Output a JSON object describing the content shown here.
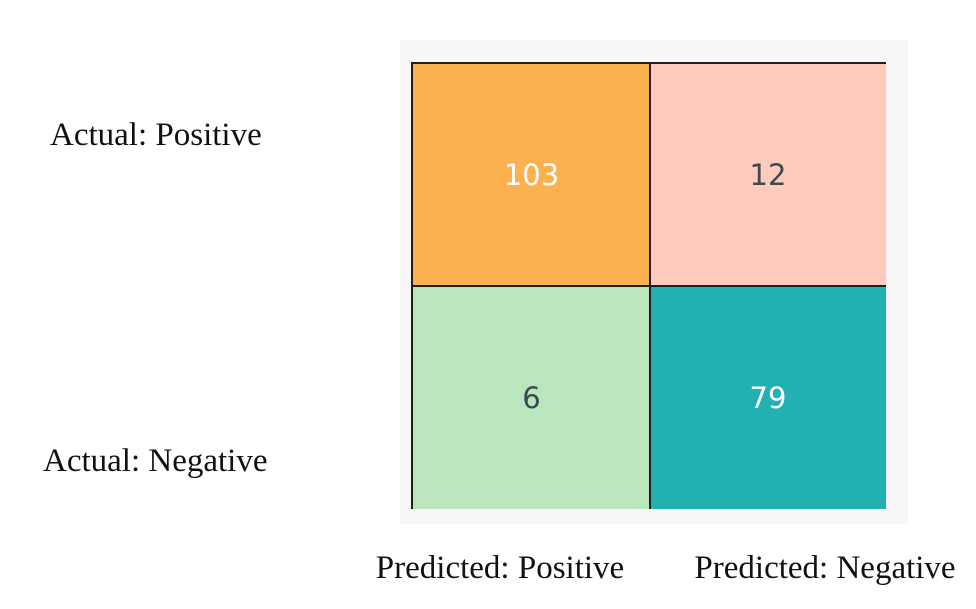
{
  "chart_data": {
    "type": "heatmap",
    "row_labels": [
      "Actual: Positive",
      "Actual: Negative"
    ],
    "column_labels": [
      "Predicted: Positive",
      "Predicted: Negative"
    ],
    "values": [
      [
        103,
        12
      ],
      [
        6,
        79
      ]
    ],
    "cell_colors": [
      [
        "#fdb04f",
        "#ffcbbc"
      ],
      [
        "#bae6be",
        "#22b0b1"
      ]
    ],
    "text_colors": [
      [
        "#ffffff",
        "#3e4a52"
      ],
      [
        "#3e4a52",
        "#ffffff"
      ]
    ]
  }
}
